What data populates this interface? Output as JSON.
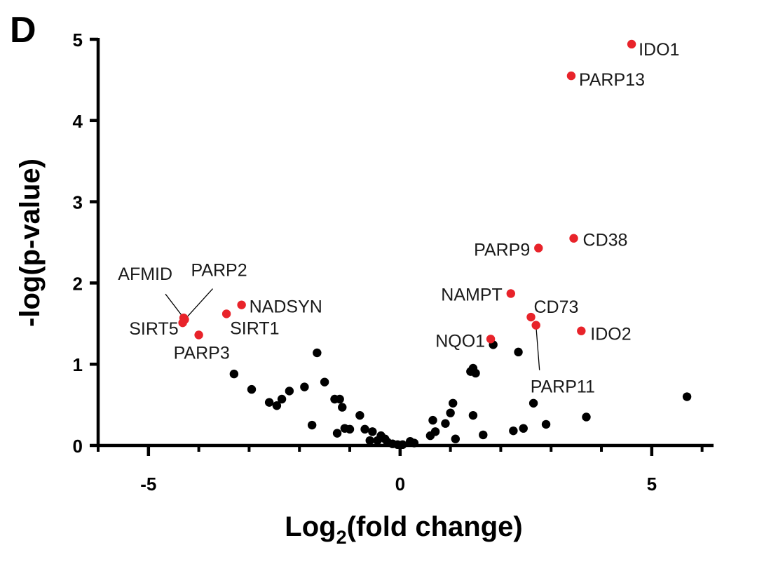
{
  "panel_label": "D",
  "chart_data": {
    "type": "scatter",
    "title": "",
    "xlabel": {
      "prefix": "Log",
      "subscript": "2",
      "suffix": "(fold change)"
    },
    "ylabel": "-log(p-value)",
    "xlim": [
      -6,
      6.2
    ],
    "ylim": [
      0,
      5
    ],
    "x_ticks": [
      -5,
      0,
      5
    ],
    "x_minor_ticks": [
      -6,
      -4,
      -3,
      -2,
      -1,
      1,
      2,
      3,
      4,
      6
    ],
    "y_ticks": [
      0,
      1,
      2,
      3,
      4,
      5
    ],
    "grid": false,
    "colors": {
      "significant": "#e8232a",
      "not_significant": "#000000",
      "axis": "#000000"
    },
    "significant_points": [
      {
        "name": "IDO1",
        "x": 4.6,
        "y": 4.94
      },
      {
        "name": "PARP13",
        "x": 3.4,
        "y": 4.55
      },
      {
        "name": "CD38",
        "x": 3.45,
        "y": 2.55
      },
      {
        "name": "PARP9",
        "x": 2.75,
        "y": 2.43
      },
      {
        "name": "NAMPT",
        "x": 2.2,
        "y": 1.87
      },
      {
        "name": "CD73",
        "x": 2.6,
        "y": 1.58
      },
      {
        "name": "PARP11",
        "x": 2.7,
        "y": 1.48
      },
      {
        "name": "IDO2",
        "x": 3.6,
        "y": 1.41
      },
      {
        "name": "NQO1",
        "x": 1.8,
        "y": 1.31
      },
      {
        "name": "AFMID",
        "x": -4.3,
        "y": 1.57
      },
      {
        "name": "PARP2",
        "x": -4.28,
        "y": 1.55
      },
      {
        "name": "SIRT5",
        "x": -4.32,
        "y": 1.51
      },
      {
        "name": "PARP3",
        "x": -4.0,
        "y": 1.36
      },
      {
        "name": "NADSYN",
        "x": -3.15,
        "y": 1.73
      },
      {
        "name": "SIRT1",
        "x": -3.45,
        "y": 1.62
      }
    ],
    "other_points": [
      {
        "x": -1.65,
        "y": 1.14
      },
      {
        "x": -1.5,
        "y": 0.78
      },
      {
        "x": -3.3,
        "y": 0.88
      },
      {
        "x": -2.95,
        "y": 0.69
      },
      {
        "x": -2.6,
        "y": 0.53
      },
      {
        "x": -2.45,
        "y": 0.49
      },
      {
        "x": -2.35,
        "y": 0.57
      },
      {
        "x": -2.2,
        "y": 0.67
      },
      {
        "x": -1.9,
        "y": 0.72
      },
      {
        "x": -1.75,
        "y": 0.25
      },
      {
        "x": -1.3,
        "y": 0.57
      },
      {
        "x": -1.2,
        "y": 0.57
      },
      {
        "x": -1.15,
        "y": 0.47
      },
      {
        "x": -1.25,
        "y": 0.15
      },
      {
        "x": -1.1,
        "y": 0.21
      },
      {
        "x": -1.0,
        "y": 0.2
      },
      {
        "x": -0.8,
        "y": 0.37
      },
      {
        "x": -0.7,
        "y": 0.2
      },
      {
        "x": -0.55,
        "y": 0.17
      },
      {
        "x": -0.6,
        "y": 0.06
      },
      {
        "x": -0.45,
        "y": 0.06
      },
      {
        "x": -0.38,
        "y": 0.12
      },
      {
        "x": -0.3,
        "y": 0.08
      },
      {
        "x": -0.25,
        "y": 0.04
      },
      {
        "x": -0.15,
        "y": 0.02
      },
      {
        "x": -0.05,
        "y": 0.01
      },
      {
        "x": 0.05,
        "y": 0.01
      },
      {
        "x": 0.2,
        "y": 0.05
      },
      {
        "x": 0.28,
        "y": 0.03
      },
      {
        "x": 0.6,
        "y": 0.12
      },
      {
        "x": 0.65,
        "y": 0.31
      },
      {
        "x": 0.7,
        "y": 0.17
      },
      {
        "x": 0.9,
        "y": 0.27
      },
      {
        "x": 1.0,
        "y": 0.4
      },
      {
        "x": 1.05,
        "y": 0.52
      },
      {
        "x": 1.1,
        "y": 0.08
      },
      {
        "x": 1.4,
        "y": 0.91
      },
      {
        "x": 1.45,
        "y": 0.95
      },
      {
        "x": 1.5,
        "y": 0.89
      },
      {
        "x": 1.45,
        "y": 0.37
      },
      {
        "x": 1.65,
        "y": 0.13
      },
      {
        "x": 1.85,
        "y": 1.24
      },
      {
        "x": 2.25,
        "y": 0.18
      },
      {
        "x": 2.35,
        "y": 1.15
      },
      {
        "x": 2.45,
        "y": 0.21
      },
      {
        "x": 2.65,
        "y": 0.52
      },
      {
        "x": 2.9,
        "y": 0.26
      },
      {
        "x": 3.7,
        "y": 0.35
      },
      {
        "x": 5.7,
        "y": 0.6
      }
    ]
  }
}
